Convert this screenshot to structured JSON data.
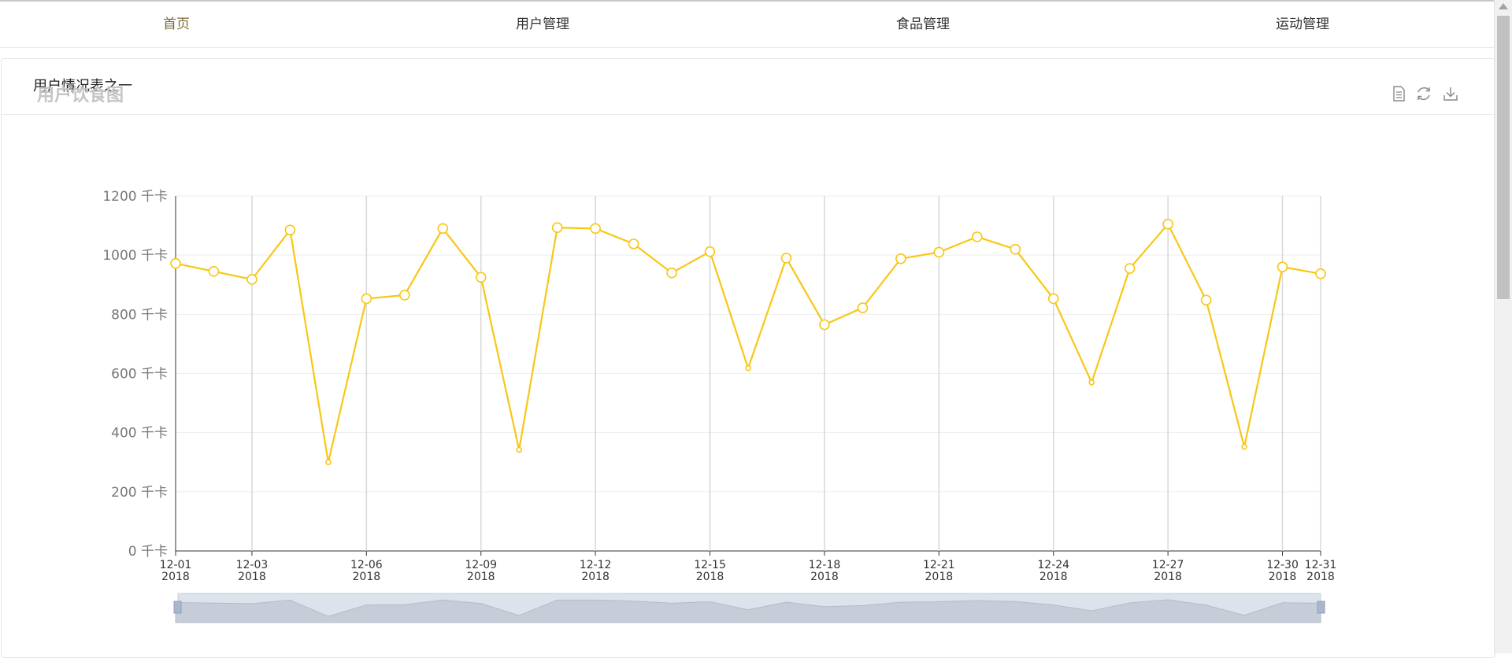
{
  "nav": {
    "items": [
      {
        "label": "首页"
      },
      {
        "label": "用户管理"
      },
      {
        "label": "食品管理"
      },
      {
        "label": "运动管理"
      }
    ]
  },
  "panel": {
    "title": "用户情况表之一"
  },
  "chart_title": "用户饮食图",
  "toolbox": [
    "data-view-icon",
    "restore-icon",
    "save-image-icon"
  ],
  "colors": {
    "line": "#f8c715",
    "grid": "#eeeeee",
    "vgrid": "#d8d8d8",
    "slider_fill": "#d3d9e3",
    "slider_bg": "#dde3ec",
    "title": "#c4c4c4"
  },
  "chart_data": {
    "type": "line",
    "title": "用户饮食图",
    "y_unit": "千卡",
    "ylim": [
      0,
      1200
    ],
    "y_ticks": [
      0,
      200,
      400,
      600,
      800,
      1000,
      1200
    ],
    "x": [
      "2018-12-01",
      "2018-12-02",
      "2018-12-03",
      "2018-12-04",
      "2018-12-05",
      "2018-12-06",
      "2018-12-07",
      "2018-12-08",
      "2018-12-09",
      "2018-12-10",
      "2018-12-11",
      "2018-12-12",
      "2018-12-13",
      "2018-12-14",
      "2018-12-15",
      "2018-12-16",
      "2018-12-17",
      "2018-12-18",
      "2018-12-19",
      "2018-12-20",
      "2018-12-21",
      "2018-12-22",
      "2018-12-23",
      "2018-12-24",
      "2018-12-25",
      "2018-12-26",
      "2018-12-27",
      "2018-12-28",
      "2018-12-29",
      "2018-12-30",
      "2018-12-31"
    ],
    "x_tick_labels": [
      {
        "date": "2018-12-01",
        "label": "12-01\n2018"
      },
      {
        "date": "2018-12-03",
        "label": "12-03\n2018"
      },
      {
        "date": "2018-12-06",
        "label": "12-06\n2018"
      },
      {
        "date": "2018-12-09",
        "label": "12-09\n2018"
      },
      {
        "date": "2018-12-12",
        "label": "12-12\n2018"
      },
      {
        "date": "2018-12-15",
        "label": "12-15\n2018"
      },
      {
        "date": "2018-12-18",
        "label": "12-18\n2018"
      },
      {
        "date": "2018-12-21",
        "label": "12-21\n2018"
      },
      {
        "date": "2018-12-24",
        "label": "12-24\n2018"
      },
      {
        "date": "2018-12-27",
        "label": "12-27\n2018"
      },
      {
        "date": "2018-12-30",
        "label": "12-30\n2018"
      },
      {
        "date": "2018-12-31",
        "label": "12-31\n2018"
      }
    ],
    "series": [
      {
        "values": [
          972,
          945,
          918,
          1085,
          300,
          853,
          865,
          1090,
          925,
          342,
          1093,
          1090,
          1038,
          940,
          1012,
          618,
          990,
          765,
          822,
          988,
          1010,
          1062,
          1020,
          853,
          570,
          955,
          1105,
          848,
          352,
          960,
          937
        ]
      }
    ],
    "grid": true,
    "data_zoom": {
      "start": 0,
      "end": 100
    }
  }
}
